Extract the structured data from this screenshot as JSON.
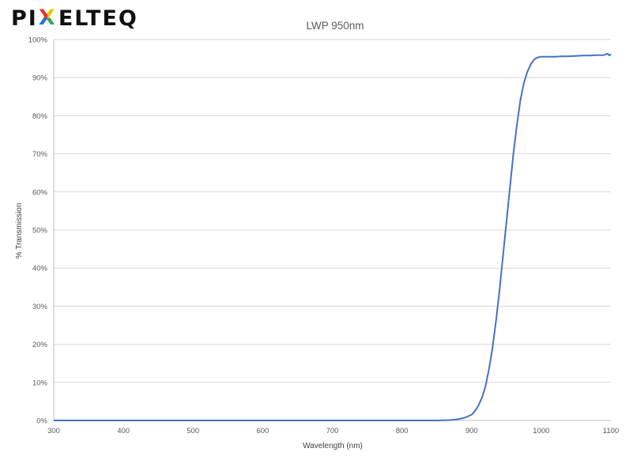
{
  "logo": {
    "text_pre": "PI",
    "text_x": "X",
    "text_post": "ELTEQ"
  },
  "chart_data": {
    "type": "line",
    "title": "LWP 950nm",
    "xlabel": "Wavelength (nm)",
    "ylabel": "% Transmission",
    "xlim": [
      300,
      1100
    ],
    "ylim": [
      0,
      100
    ],
    "x_ticks": [
      "300",
      "400",
      "500",
      "600",
      "700",
      "800",
      "900",
      "1000",
      "1100"
    ],
    "y_ticks": [
      "0%",
      "10%",
      "20%",
      "30%",
      "40%",
      "50%",
      "60%",
      "70%",
      "80%",
      "90%",
      "100%"
    ],
    "grid": true,
    "series": [
      {
        "color": "#4472c4",
        "x": [
          300,
          400,
          500,
          600,
          700,
          800,
          850,
          870,
          880,
          890,
          900,
          905,
          910,
          915,
          920,
          925,
          930,
          935,
          940,
          945,
          950,
          955,
          960,
          965,
          970,
          975,
          980,
          985,
          990,
          995,
          1000,
          1005,
          1010,
          1020,
          1030,
          1040,
          1050,
          1060,
          1070,
          1080,
          1090,
          1095,
          1098,
          1100
        ],
        "y": [
          0,
          0,
          0,
          0,
          0,
          0,
          0,
          0.1,
          0.3,
          0.7,
          1.5,
          2.5,
          4,
          6,
          9,
          13.5,
          19,
          26,
          34,
          43,
          52,
          61,
          70,
          77.5,
          84,
          88.5,
          91.5,
          93.5,
          94.8,
          95.3,
          95.5,
          95.5,
          95.5,
          95.5,
          95.6,
          95.6,
          95.7,
          95.8,
          95.8,
          95.9,
          95.9,
          96.3,
          95.8,
          96.2
        ]
      }
    ]
  },
  "colors": {
    "line": "#4472c4",
    "grid": "#d9d9d9",
    "axis": "#bfbfbf"
  }
}
